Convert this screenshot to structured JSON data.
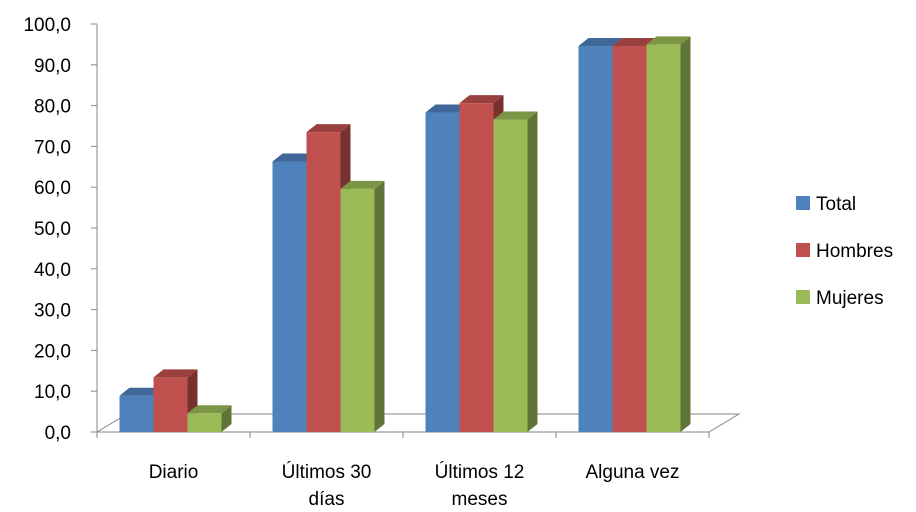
{
  "chart_data": {
    "type": "bar",
    "categories": [
      "Diario",
      "Últimos 30 días",
      "Últimos 12 meses",
      "Alguna vez"
    ],
    "category_lines": [
      [
        "Diario"
      ],
      [
        "Últimos 30",
        "días"
      ],
      [
        "Últimos 12",
        "meses"
      ],
      [
        "Alguna vez"
      ]
    ],
    "series": [
      {
        "name": "Total",
        "color": "#4F81BD",
        "values": [
          8.9,
          66.3,
          78.3,
          94.6
        ]
      },
      {
        "name": "Hombres",
        "color": "#C0504D",
        "values": [
          13.4,
          73.5,
          80.6,
          94.6
        ]
      },
      {
        "name": "Mujeres",
        "color": "#9BBB59",
        "values": [
          4.6,
          59.6,
          76.6,
          95.0
        ]
      }
    ],
    "ylim": [
      0,
      100
    ],
    "yticks": [
      "0,0",
      "10,0",
      "20,0",
      "30,0",
      "40,0",
      "50,0",
      "60,0",
      "70,0",
      "80,0",
      "90,0",
      "100,0"
    ],
    "grid": false,
    "legend_position": "right",
    "style": "3d-clustered-column"
  }
}
